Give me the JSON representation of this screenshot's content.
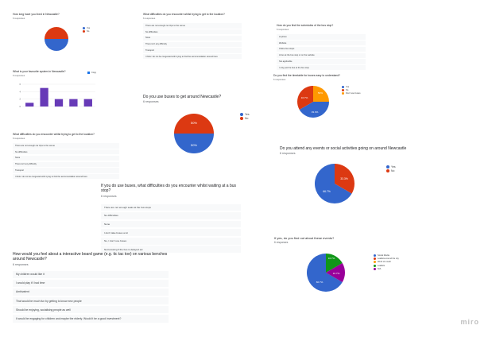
{
  "brand": {
    "name": "miro"
  },
  "colors": {
    "blue": "#3366cc",
    "red": "#dc3912",
    "orange": "#ff9900",
    "green": "#109618",
    "purple": "#990099",
    "bar": "#673ab7",
    "row": "#f8f9fa"
  },
  "cards": {
    "live": {
      "question": "How long have you lived in Newcastle?",
      "responses": "6 responses",
      "chart_data": {
        "type": "pie",
        "values": [
          50,
          50
        ],
        "series": [
          "Yes",
          "No"
        ],
        "colors": [
          "#dc3912",
          "#3366cc"
        ],
        "legend": [
          "Yes",
          "No"
        ],
        "legend_placement": "right"
      }
    },
    "frequency": {
      "question": "What is your favourite system in Newcastle?",
      "responses": "6 responses",
      "chart_data": {
        "type": "bar",
        "values": [
          1,
          5,
          2,
          2,
          2
        ],
        "ylim": [
          0,
          5
        ],
        "yticks": [
          "0",
          "2",
          "4",
          "6"
        ],
        "legend": [
          "Copy"
        ]
      }
    },
    "diff_small": {
      "question": "What difficulties do you encounter whilst trying to get to the location?",
      "responses": "6 responses",
      "rows": [
        "There are not enough car trips to the venue",
        "No difficulties",
        "None",
        "There isn't any difficulty",
        "Transport",
        "I think I do not be congested with trying to find the accommodation around here"
      ]
    },
    "diff_small_2": {
      "question": "What difficulties do you encounter whilst trying to get to the location?",
      "responses": "6 responses",
      "rows": [
        "There are not enough car trips to the venue",
        "No difficulties",
        "None",
        "There isn't any difficulty",
        "Transport",
        "I think I do not be congested with trying to find the accommodation around here"
      ]
    },
    "buses": {
      "question": "Do you use buses to get around Newcastle?",
      "responses": "6 responses",
      "chart_data": {
        "type": "pie",
        "values": [
          50,
          50
        ],
        "labels": [
          "50%",
          "50%"
        ],
        "colors": [
          "#dc3912",
          "#3366cc"
        ],
        "legend": [
          "Yes",
          "No"
        ],
        "legend_placement": "right"
      }
    },
    "bus_stop": {
      "question": "If you do use buses, what difficulties do you encounter whilst waiting at a bus stop?",
      "responses": "6 responses",
      "rows": [
        "There are not enough seats at the bus stops",
        "No difficulties",
        "None",
        "I don't take buses a lot",
        "No, I don't use buses",
        "Not knowing if the bus is delayed etc"
      ]
    },
    "where": {
      "question": "How do you find the schedules of the bus stop?",
      "responses": "6 responses",
      "rows": [
        "At photo",
        "Website",
        "Online bus stops",
        "A bus at the bus stop or on the website",
        "Not applicable",
        "I only just the bus at the bus stop"
      ]
    },
    "timetable": {
      "question": "Do you find the timetable for buses easy to understand?",
      "responses": "6 responses",
      "chart_data": {
        "type": "pie",
        "values": [
          50,
          16.7,
          33.3
        ],
        "labels": [
          "50%",
          "16.7%",
          "33.3%"
        ],
        "colors": [
          "#ff9900",
          "#dc3912",
          "#3366cc"
        ],
        "legend": [
          "Yes",
          "No",
          "Don't use buses"
        ],
        "legend_placement": "right"
      }
    },
    "events": {
      "question": "Do you attend any events or social activities going on around Newcastle",
      "responses": "6 responses",
      "chart_data": {
        "type": "pie",
        "values": [
          33.3,
          66.7
        ],
        "labels": [
          "33.3%",
          "66.7%"
        ],
        "colors": [
          "#dc3912",
          "#3366cc"
        ],
        "legend": [
          "Yes",
          "No"
        ],
        "legend_placement": "right"
      }
    },
    "game": {
      "question": "How would you feel about a interactive board game (e.g. tic tac toe) on various benches around Newcastle?",
      "responses": "6 responses",
      "rows": [
        "My children would like it",
        "I would play if I had time",
        "Ambivalent",
        "That would be much fun by getting to know new people",
        "Should be enjoying, socialising people as well",
        "It would be engaging for children and maybe the elderly. Would it be a good investment?"
      ]
    },
    "find_events": {
      "question": "If yes, do you find out about these events?",
      "responses": "6 responses",
      "chart_data": {
        "type": "pie",
        "values": [
          16.7,
          66.7,
          16.7
        ],
        "labels": [
          "16.7%",
          "66.7%",
          "16.7%"
        ],
        "colors": [
          "#990099",
          "#3366cc",
          "#109618"
        ],
        "legend": [
          "Social Media",
          "Leaflets around the city",
          "Word of mouth",
          "Leaflets",
          "N/A"
        ],
        "legend_colors": [
          "#3366cc",
          "#dc3912",
          "#ff9900",
          "#109618",
          "#990099"
        ],
        "legend_placement": "right"
      }
    }
  }
}
